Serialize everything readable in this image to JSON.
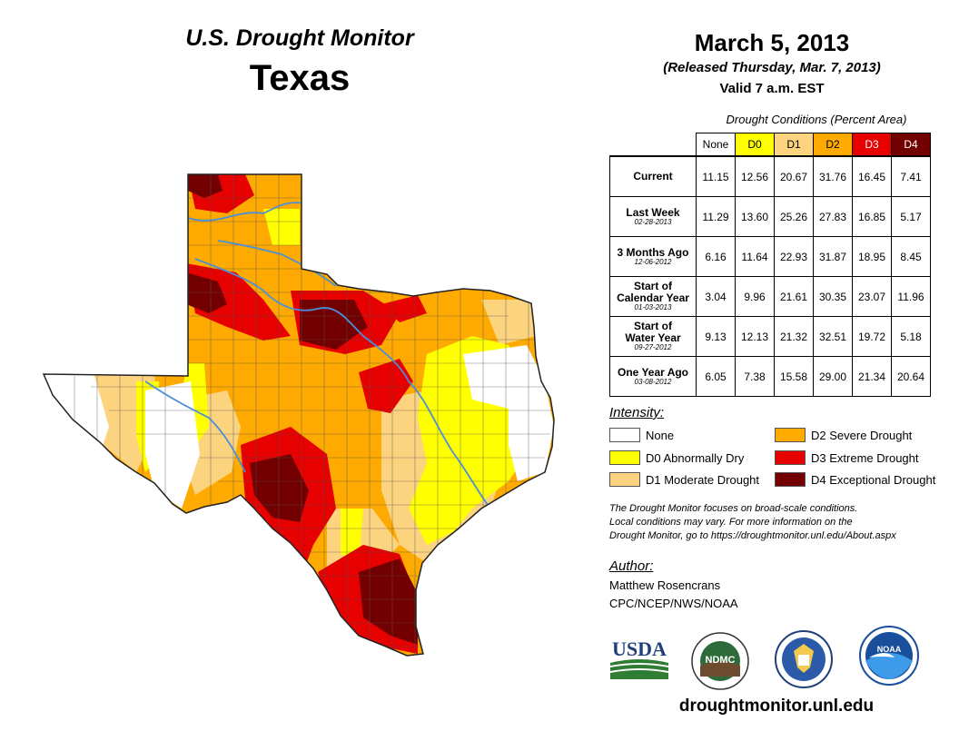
{
  "header": {
    "program": "U.S. Drought Monitor",
    "state": "Texas",
    "date": "March 5, 2013",
    "released": "(Released Thursday, Mar. 7, 2013)",
    "valid": "Valid 7 a.m. EST"
  },
  "table": {
    "caption": "Drought Conditions (Percent Area)",
    "columns": [
      "None",
      "D0",
      "D1",
      "D2",
      "D3",
      "D4"
    ],
    "rows": [
      {
        "label1": "Current",
        "label2": "",
        "date": "",
        "values": [
          "11.15",
          "12.56",
          "20.67",
          "31.76",
          "16.45",
          "7.41"
        ]
      },
      {
        "label1": "Last Week",
        "label2": "",
        "date": "02-28-2013",
        "values": [
          "11.29",
          "13.60",
          "25.26",
          "27.83",
          "16.85",
          "5.17"
        ]
      },
      {
        "label1": "3 Months Ago",
        "label2": "",
        "date": "12-06-2012",
        "values": [
          "6.16",
          "11.64",
          "22.93",
          "31.87",
          "18.95",
          "8.45"
        ]
      },
      {
        "label1": "Start of",
        "label2": "Calendar Year",
        "date": "01-03-2013",
        "values": [
          "3.04",
          "9.96",
          "21.61",
          "30.35",
          "23.07",
          "11.96"
        ]
      },
      {
        "label1": "Start of",
        "label2": "Water Year",
        "date": "09-27-2012",
        "values": [
          "9.13",
          "12.13",
          "21.32",
          "32.51",
          "19.72",
          "5.18"
        ]
      },
      {
        "label1": "One Year Ago",
        "label2": "",
        "date": "03-08-2012",
        "values": [
          "6.05",
          "7.38",
          "15.58",
          "29.00",
          "21.34",
          "20.64"
        ]
      }
    ]
  },
  "legend": {
    "title": "Intensity:",
    "items": [
      {
        "label": "None",
        "color": "#ffffff"
      },
      {
        "label": "D0 Abnormally Dry",
        "color": "#ffff00"
      },
      {
        "label": "D1 Moderate Drought",
        "color": "#fcd37f"
      },
      {
        "label": "D2 Severe Drought",
        "color": "#ffaa00"
      },
      {
        "label": "D3 Extreme Drought",
        "color": "#e60000"
      },
      {
        "label": "D4 Exceptional Drought",
        "color": "#730000"
      }
    ]
  },
  "note": {
    "line1": "The Drought Monitor focuses on broad-scale conditions.",
    "line2": "Local conditions may vary. For more information on the",
    "line3": "Drought Monitor, go to https://droughtmonitor.unl.edu/About.aspx"
  },
  "author": {
    "label": "Author:",
    "name": "Matthew Rosencrans",
    "org": "CPC/NCEP/NWS/NOAA"
  },
  "logos": {
    "usda": "USDA",
    "ndmc": "NDMC",
    "noaa": "NOAA"
  },
  "footer": {
    "url": "droughtmonitor.unl.edu"
  },
  "colors": {
    "none": "#ffffff",
    "d0": "#ffff00",
    "d1": "#fcd37f",
    "d2": "#ffaa00",
    "d3": "#e60000",
    "d4": "#730000",
    "river": "#4a90d9"
  }
}
